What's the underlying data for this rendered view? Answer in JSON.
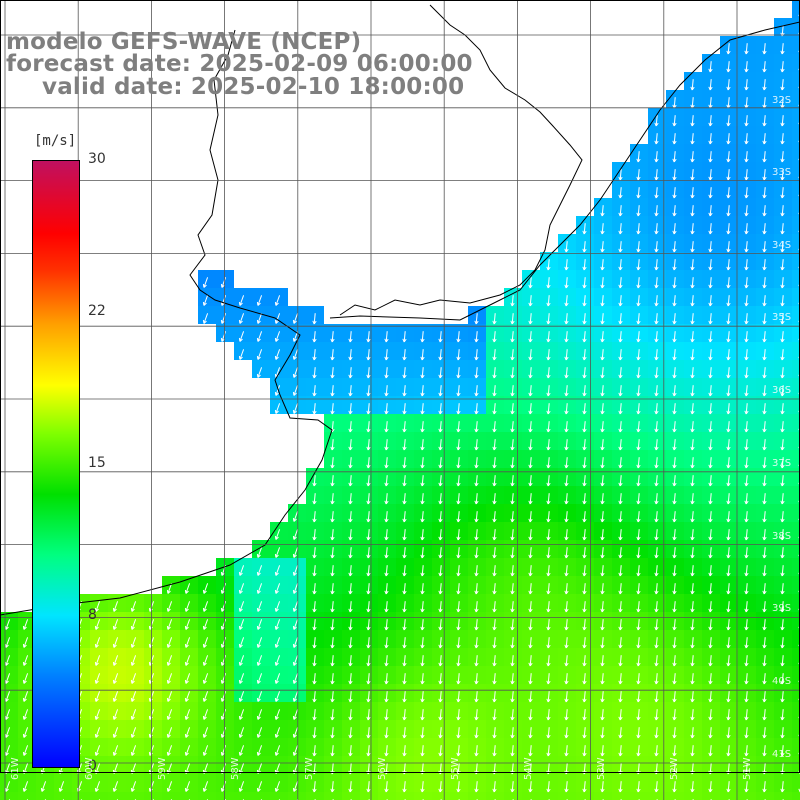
{
  "title": {
    "line1": "modelo GEFS-WAVE (NCEP)",
    "line2": "forecast date: 2025-02-09 06:00:00",
    "line3": "valid date: 2025-02-10 18:00:00"
  },
  "colorbar": {
    "unit": "[m/s]",
    "labels": [
      "30",
      "22",
      "15",
      "8",
      "0"
    ],
    "range": [
      0,
      30
    ]
  },
  "lat_labels": [
    "32S",
    "33S",
    "34S",
    "35S",
    "36S",
    "37S",
    "38S",
    "39S",
    "40S",
    "41S"
  ],
  "lon_labels": [
    "61W",
    "60W",
    "59W",
    "58W",
    "57W",
    "56W",
    "55W",
    "54W",
    "53W",
    "52W",
    "51W"
  ],
  "colors": {
    "land": "#ffffff",
    "grid": "#555555",
    "coast": "#000000",
    "arrow": "#ffffff",
    "title": "#7f7f7f"
  }
}
